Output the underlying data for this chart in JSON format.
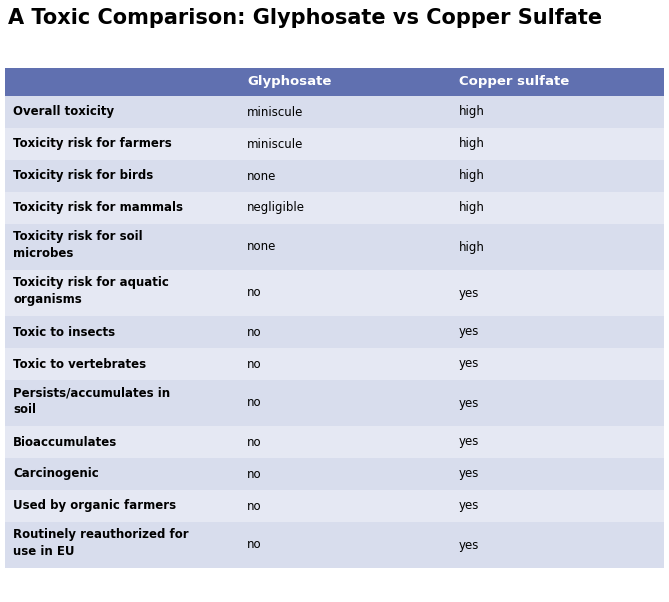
{
  "title": "A Toxic Comparison: Glyphosate vs Copper Sulfate",
  "title_fontsize": 15,
  "title_fontweight": "bold",
  "header_labels": [
    "",
    "Glyphosate",
    "Copper sulfate"
  ],
  "header_bg_color": "#6070b0",
  "header_text_color": "#ffffff",
  "header_fontsize": 9.5,
  "header_fontweight": "bold",
  "rows": [
    [
      "Overall toxicity",
      "miniscule",
      "high"
    ],
    [
      "Toxicity risk for farmers",
      "miniscule",
      "high"
    ],
    [
      "Toxicity risk for birds",
      "none",
      "high"
    ],
    [
      "Toxicity risk for mammals",
      "negligible",
      "high"
    ],
    [
      "Toxicity risk for soil\nmicrobes",
      "none",
      "high"
    ],
    [
      "Toxicity risk for aquatic\norganisms",
      "no",
      "yes"
    ],
    [
      "Toxic to insects",
      "no",
      "yes"
    ],
    [
      "Toxic to vertebrates",
      "no",
      "yes"
    ],
    [
      "Persists/accumulates in\nsoil",
      "no",
      "yes"
    ],
    [
      "Bioaccumulates",
      "no",
      "yes"
    ],
    [
      "Carcinogenic",
      "no",
      "yes"
    ],
    [
      "Used by organic farmers",
      "no",
      "yes"
    ],
    [
      "Routinely reauthorized for\nuse in EU",
      "no",
      "yes"
    ]
  ],
  "row_colors": [
    "#d8dded",
    "#e5e8f3",
    "#d8dded",
    "#e5e8f3",
    "#d8dded",
    "#e5e8f3",
    "#d8dded",
    "#e5e8f3",
    "#d8dded",
    "#e5e8f3",
    "#d8dded",
    "#e5e8f3",
    "#d8dded"
  ],
  "row_text_color": "#000000",
  "row_fontsize": 8.5,
  "col_label_fontweight": "bold",
  "col_val_fontweight": "normal",
  "background_color": "#ffffff",
  "figure_width": 6.69,
  "figure_height": 6.02,
  "dpi": 100
}
